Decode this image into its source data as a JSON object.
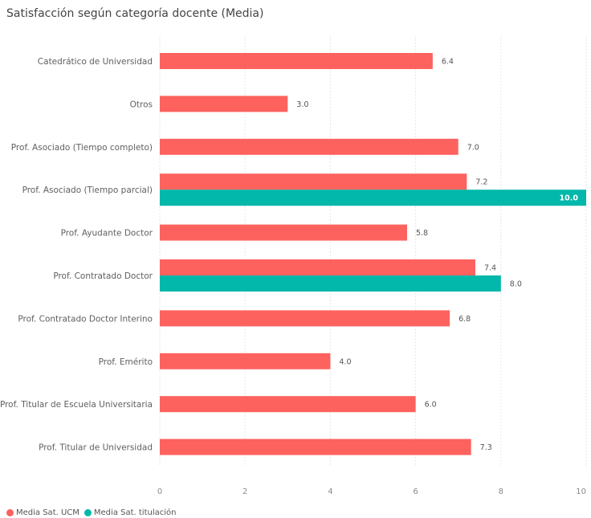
{
  "chart_data": {
    "type": "bar",
    "orientation": "horizontal",
    "title": "Satisfacción según categoría docente (Media)",
    "categories": [
      "Catedrático de Universidad",
      "Otros",
      "Prof. Asociado (Tiempo completo)",
      "Prof. Asociado (Tiempo parcial)",
      "Prof. Ayudante Doctor",
      "Prof. Contratado Doctor",
      "Prof. Contratado Doctor Interino",
      "Prof. Emérito",
      "Prof. Titular de Escuela Universitaria",
      "Prof. Titular de Universidad"
    ],
    "series": [
      {
        "name": "Media Sat. UCM",
        "color": "#fd625e",
        "values": [
          6.4,
          3.0,
          7.0,
          7.2,
          5.8,
          7.4,
          6.8,
          4.0,
          6.0,
          7.3
        ],
        "labels": [
          "6.4",
          "3.0",
          "7.0",
          "7.2",
          "5.8",
          "7.4",
          "6.8",
          "4.0",
          "6.0",
          "7.3"
        ]
      },
      {
        "name": "Media Sat. titulación",
        "color": "#01b8aa",
        "values": [
          null,
          null,
          null,
          10.0,
          null,
          8.0,
          null,
          null,
          null,
          null
        ],
        "labels": [
          null,
          null,
          null,
          "10.0",
          null,
          "8.0",
          null,
          null,
          null,
          null
        ]
      }
    ],
    "xlim": [
      0,
      10
    ],
    "xticks": [
      "0",
      "2",
      "4",
      "6",
      "8",
      "10"
    ],
    "grid": true,
    "legend_position": "bottom-left"
  }
}
